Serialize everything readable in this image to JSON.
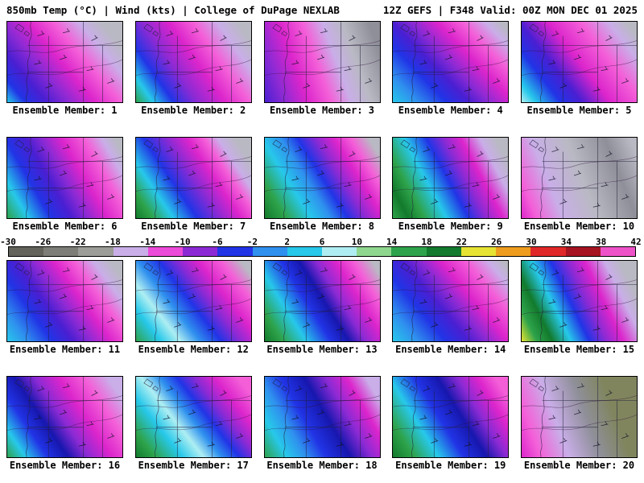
{
  "header": {
    "left": "850mb Temp (°C) | Wind (kts) | College of DuPage NEXLAB",
    "right": "12Z GEFS | F348 Valid: 00Z MON DEC 01 2025"
  },
  "colorbar": {
    "ticks": [
      "-30",
      "-26",
      "-22",
      "-18",
      "-14",
      "-10",
      "-6",
      "-2",
      "2",
      "6",
      "10",
      "14",
      "18",
      "22",
      "26",
      "30",
      "34",
      "38",
      "42"
    ],
    "segment_colors": [
      "#63635b",
      "#7e7e78",
      "#9c9c98",
      "#c9aee8",
      "#ec4ad8",
      "#8b2ad4",
      "#2134e6",
      "#2f90ee",
      "#27c8ea",
      "#aeeef2",
      "#8fd78f",
      "#2ea34b",
      "#127a2c",
      "#e6e332",
      "#ee9c1e",
      "#e02828",
      "#a51420",
      "#ee52c8"
    ]
  },
  "members": [
    {
      "label": "Ensemble Member: 1",
      "gradient": {
        "angle": 50,
        "stops": [
          [
            "#27c8ea",
            0
          ],
          [
            "#2134e6",
            10
          ],
          [
            "#4a1fd2",
            22
          ],
          [
            "#8b2ad4",
            34
          ],
          [
            "#dc25cc",
            48
          ],
          [
            "#f45fd8",
            62
          ],
          [
            "#c9aee8",
            76
          ],
          [
            "#b9b9c3",
            88
          ]
        ]
      }
    },
    {
      "label": "Ensemble Member: 2",
      "gradient": {
        "angle": 55,
        "stops": [
          [
            "#2ea34b",
            0
          ],
          [
            "#27c8ea",
            10
          ],
          [
            "#2134e6",
            22
          ],
          [
            "#8b2ad4",
            36
          ],
          [
            "#dc25cc",
            52
          ],
          [
            "#f45fd8",
            66
          ],
          [
            "#c9aee8",
            80
          ],
          [
            "#b9b9c3",
            92
          ]
        ]
      }
    },
    {
      "label": "Ensemble Member: 3",
      "gradient": {
        "angle": 70,
        "stops": [
          [
            "#4a1fd2",
            0
          ],
          [
            "#8b2ad4",
            14
          ],
          [
            "#dc25cc",
            30
          ],
          [
            "#f45fd8",
            46
          ],
          [
            "#c9aee8",
            60
          ],
          [
            "#b9b9c3",
            74
          ],
          [
            "#8f8f99",
            92
          ]
        ]
      }
    },
    {
      "label": "Ensemble Member: 4",
      "gradient": {
        "angle": 46,
        "stops": [
          [
            "#27c8ea",
            0
          ],
          [
            "#2f90ee",
            13
          ],
          [
            "#2134e6",
            28
          ],
          [
            "#4a1fd2",
            40
          ],
          [
            "#8b2ad4",
            50
          ],
          [
            "#dc25cc",
            63
          ],
          [
            "#f45fd8",
            76
          ],
          [
            "#c9aee8",
            88
          ],
          [
            "#b9b9c3",
            96
          ]
        ]
      }
    },
    {
      "label": "Ensemble Member: 5",
      "gradient": {
        "angle": 52,
        "stops": [
          [
            "#aeeef2",
            0
          ],
          [
            "#27c8ea",
            8
          ],
          [
            "#2134e6",
            22
          ],
          [
            "#4a1fd2",
            34
          ],
          [
            "#dc25cc",
            50
          ],
          [
            "#f45fd8",
            68
          ],
          [
            "#c9aee8",
            84
          ],
          [
            "#b9b9c3",
            94
          ]
        ]
      }
    },
    {
      "label": "Ensemble Member: 6",
      "gradient": {
        "angle": 60,
        "stops": [
          [
            "#2ea34b",
            0
          ],
          [
            "#27c8ea",
            13
          ],
          [
            "#2134e6",
            27
          ],
          [
            "#4a1fd2",
            40
          ],
          [
            "#8b2ad4",
            50
          ],
          [
            "#dc25cc",
            62
          ],
          [
            "#f45fd8",
            76
          ],
          [
            "#c9aee8",
            87
          ],
          [
            "#b9b9c3",
            95
          ]
        ]
      }
    },
    {
      "label": "Ensemble Member: 7",
      "gradient": {
        "angle": 56,
        "stops": [
          [
            "#127a2c",
            0
          ],
          [
            "#2ea34b",
            10
          ],
          [
            "#27c8ea",
            22
          ],
          [
            "#2134e6",
            36
          ],
          [
            "#8b2ad4",
            50
          ],
          [
            "#dc25cc",
            62
          ],
          [
            "#f45fd8",
            72
          ],
          [
            "#c9aee8",
            80
          ],
          [
            "#b9b9c3",
            90
          ]
        ]
      }
    },
    {
      "label": "Ensemble Member: 8",
      "gradient": {
        "angle": 58,
        "stops": [
          [
            "#127a2c",
            0
          ],
          [
            "#2ea34b",
            13
          ],
          [
            "#27c8ea",
            28
          ],
          [
            "#2f90ee",
            40
          ],
          [
            "#2134e6",
            50
          ],
          [
            "#8b2ad4",
            61
          ],
          [
            "#dc25cc",
            72
          ],
          [
            "#f45fd8",
            82
          ],
          [
            "#b9b9c3",
            93
          ]
        ]
      }
    },
    {
      "label": "Ensemble Member: 9",
      "gradient": {
        "angle": 62,
        "stops": [
          [
            "#2ea34b",
            0
          ],
          [
            "#127a2c",
            10
          ],
          [
            "#2ea34b",
            20
          ],
          [
            "#27c8ea",
            34
          ],
          [
            "#2134e6",
            48
          ],
          [
            "#8b2ad4",
            59
          ],
          [
            "#dc25cc",
            70
          ],
          [
            "#c9aee8",
            82
          ],
          [
            "#b9b9c3",
            92
          ]
        ]
      }
    },
    {
      "label": "Ensemble Member: 10",
      "gradient": {
        "angle": 68,
        "stops": [
          [
            "#dc25cc",
            0
          ],
          [
            "#f45fd8",
            10
          ],
          [
            "#c9aee8",
            28
          ],
          [
            "#b9b9c3",
            52
          ],
          [
            "#8f8f99",
            78
          ],
          [
            "#b9b9c3",
            95
          ]
        ]
      }
    },
    {
      "label": "Ensemble Member: 11",
      "gradient": {
        "angle": 54,
        "stops": [
          [
            "#27c8ea",
            0
          ],
          [
            "#2f90ee",
            12
          ],
          [
            "#2134e6",
            26
          ],
          [
            "#4a1fd2",
            38
          ],
          [
            "#8b2ad4",
            48
          ],
          [
            "#dc25cc",
            60
          ],
          [
            "#f45fd8",
            72
          ],
          [
            "#c9aee8",
            83
          ],
          [
            "#b9b9c3",
            93
          ]
        ]
      }
    },
    {
      "label": "Ensemble Member: 12",
      "gradient": {
        "angle": 52,
        "stops": [
          [
            "#2ea34b",
            0
          ],
          [
            "#27c8ea",
            14
          ],
          [
            "#aeeef2",
            25
          ],
          [
            "#2f90ee",
            36
          ],
          [
            "#2134e6",
            48
          ],
          [
            "#8b2ad4",
            59
          ],
          [
            "#dc25cc",
            70
          ],
          [
            "#f45fd8",
            83
          ],
          [
            "#b9b9c3",
            94
          ]
        ]
      }
    },
    {
      "label": "Ensemble Member: 13",
      "gradient": {
        "angle": 58,
        "stops": [
          [
            "#127a2c",
            0
          ],
          [
            "#2ea34b",
            11
          ],
          [
            "#27c8ea",
            25
          ],
          [
            "#2134e6",
            40
          ],
          [
            "#1717ae",
            51
          ],
          [
            "#8b2ad4",
            61
          ],
          [
            "#dc25cc",
            73
          ],
          [
            "#f45fd8",
            84
          ],
          [
            "#b9b9c3",
            95
          ]
        ]
      }
    },
    {
      "label": "Ensemble Member: 14",
      "gradient": {
        "angle": 50,
        "stops": [
          [
            "#27c8ea",
            0
          ],
          [
            "#2f90ee",
            14
          ],
          [
            "#2134e6",
            29
          ],
          [
            "#4a1fd2",
            42
          ],
          [
            "#8b2ad4",
            52
          ],
          [
            "#dc25cc",
            63
          ],
          [
            "#f45fd8",
            77
          ],
          [
            "#c9aee8",
            89
          ],
          [
            "#b9b9c3",
            97
          ]
        ]
      }
    },
    {
      "label": "Ensemble Member: 15",
      "gradient": {
        "angle": 64,
        "stops": [
          [
            "#e6e332",
            0
          ],
          [
            "#2ea34b",
            10
          ],
          [
            "#127a2c",
            20
          ],
          [
            "#27c8ea",
            32
          ],
          [
            "#2134e6",
            44
          ],
          [
            "#8b2ad4",
            55
          ],
          [
            "#dc25cc",
            66
          ],
          [
            "#c9aee8",
            79
          ],
          [
            "#b9b9c3",
            89
          ]
        ]
      }
    },
    {
      "label": "Ensemble Member: 16",
      "gradient": {
        "angle": 56,
        "stops": [
          [
            "#2ea34b",
            0
          ],
          [
            "#27c8ea",
            11
          ],
          [
            "#2134e6",
            24
          ],
          [
            "#1717ae",
            36
          ],
          [
            "#8b2ad4",
            48
          ],
          [
            "#dc25cc",
            62
          ],
          [
            "#f45fd8",
            77
          ],
          [
            "#c9aee8",
            91
          ]
        ]
      }
    },
    {
      "label": "Ensemble Member: 17",
      "gradient": {
        "angle": 52,
        "stops": [
          [
            "#127a2c",
            0
          ],
          [
            "#2ea34b",
            11
          ],
          [
            "#27c8ea",
            26
          ],
          [
            "#aeeef2",
            38
          ],
          [
            "#2f90ee",
            48
          ],
          [
            "#2134e6",
            58
          ],
          [
            "#8b2ad4",
            68
          ],
          [
            "#dc25cc",
            79
          ],
          [
            "#f45fd8",
            92
          ]
        ]
      }
    },
    {
      "label": "Ensemble Member: 18",
      "gradient": {
        "angle": 60,
        "stops": [
          [
            "#2ea34b",
            0
          ],
          [
            "#27c8ea",
            14
          ],
          [
            "#2f90ee",
            26
          ],
          [
            "#2134e6",
            38
          ],
          [
            "#1717ae",
            53
          ],
          [
            "#8b2ad4",
            66
          ],
          [
            "#dc25cc",
            79
          ],
          [
            "#c9aee8",
            91
          ]
        ]
      }
    },
    {
      "label": "Ensemble Member: 19",
      "gradient": {
        "angle": 58,
        "stops": [
          [
            "#127a2c",
            0
          ],
          [
            "#2ea34b",
            13
          ],
          [
            "#27c8ea",
            28
          ],
          [
            "#2134e6",
            43
          ],
          [
            "#1717ae",
            57
          ],
          [
            "#8b2ad4",
            69
          ],
          [
            "#dc25cc",
            81
          ],
          [
            "#f45fd8",
            92
          ]
        ]
      }
    },
    {
      "label": "Ensemble Member: 20",
      "gradient": {
        "angle": 70,
        "stops": [
          [
            "#dc25cc",
            0
          ],
          [
            "#f45fd8",
            13
          ],
          [
            "#c9aee8",
            33
          ],
          [
            "#8f8f99",
            55
          ],
          [
            "#80855e",
            75
          ],
          [
            "#80855e",
            95
          ]
        ]
      }
    }
  ]
}
